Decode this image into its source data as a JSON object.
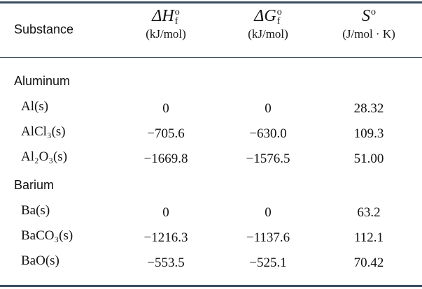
{
  "table": {
    "header": {
      "substance": "Substance",
      "columns": [
        {
          "symbol": "ΔH",
          "sup": "o",
          "sub": "f",
          "unit": "(kJ/mol)"
        },
        {
          "symbol": "ΔG",
          "sup": "o",
          "sub": "f",
          "unit": "(kJ/mol)"
        },
        {
          "symbol": "S",
          "sup": "o",
          "unit": "(J/mol · K)"
        }
      ]
    },
    "groups": [
      {
        "name": "Aluminum",
        "rows": [
          {
            "formula": "Al(s)",
            "values": [
              "0",
              "0",
              "28.32"
            ]
          },
          {
            "formula": "AlCl₃(s)",
            "values": [
              "−705.6",
              "−630.0",
              "109.3"
            ]
          },
          {
            "formula": "Al₂O₃(s)",
            "values": [
              "−1669.8",
              "−1576.5",
              "51.00"
            ]
          }
        ]
      },
      {
        "name": "Barium",
        "rows": [
          {
            "formula": "Ba(s)",
            "values": [
              "0",
              "0",
              "63.2"
            ]
          },
          {
            "formula": "BaCO₃(s)",
            "values": [
              "−1216.3",
              "−1137.6",
              "112.1"
            ]
          },
          {
            "formula": "BaO(s)",
            "values": [
              "−553.5",
              "−525.1",
              "70.42"
            ]
          }
        ]
      }
    ]
  }
}
